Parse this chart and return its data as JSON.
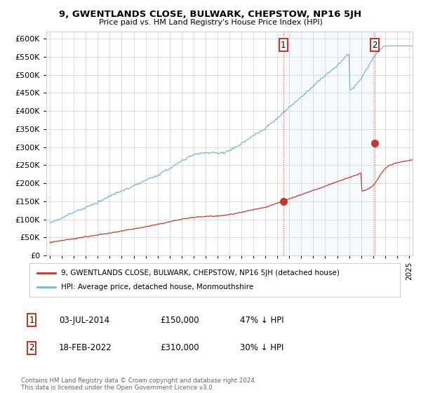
{
  "title": "9, GWENTLANDS CLOSE, BULWARK, CHEPSTOW, NP16 5JH",
  "subtitle": "Price paid vs. HM Land Registry's House Price Index (HPI)",
  "legend_line1": "9, GWENTLANDS CLOSE, BULWARK, CHEPSTOW, NP16 5JH (detached house)",
  "legend_line2": "HPI: Average price, detached house, Monmouthshire",
  "table_rows": [
    {
      "num": "1",
      "date": "03-JUL-2014",
      "price": "£150,000",
      "hpi": "47% ↓ HPI"
    },
    {
      "num": "2",
      "date": "18-FEB-2022",
      "price": "£310,000",
      "hpi": "30% ↓ HPI"
    }
  ],
  "footer": "Contains HM Land Registry data © Crown copyright and database right 2024.\nThis data is licensed under the Open Government Licence v3.0.",
  "hpi_color": "#7ab3d4",
  "price_color": "#c0392b",
  "vline_color": "#c0392b",
  "ylim": [
    0,
    620000
  ],
  "yticks": [
    0,
    50000,
    100000,
    150000,
    200000,
    250000,
    300000,
    350000,
    400000,
    450000,
    500000,
    550000,
    600000
  ],
  "xlim_start": 1994.7,
  "xlim_end": 2025.3,
  "background_color": "#ffffff",
  "grid_color": "#d0d0d0",
  "shade_color": "#ddeeff",
  "purchase1_x": 2014.5,
  "purchase1_y": 150000,
  "purchase2_x": 2022.12,
  "purchase2_y": 310000
}
